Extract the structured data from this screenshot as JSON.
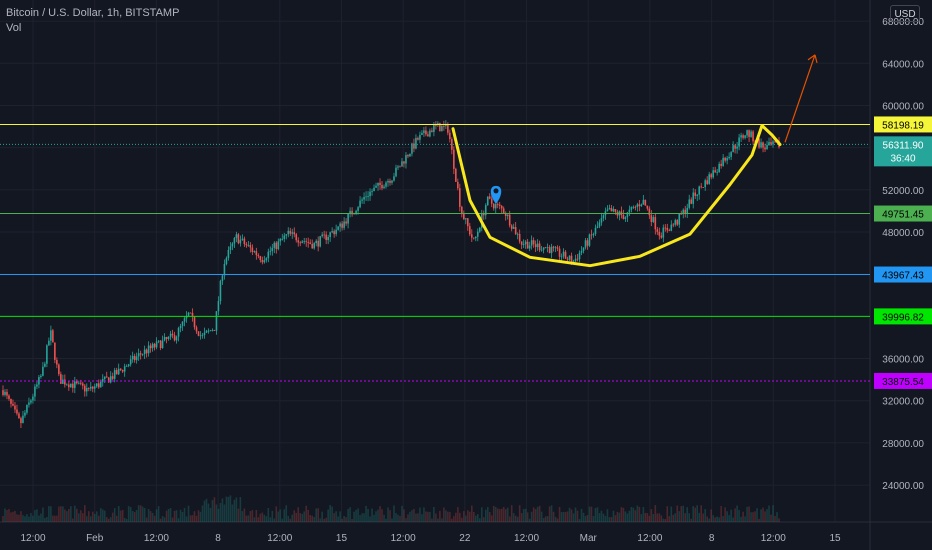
{
  "header": {
    "symbol_line": "Bitcoin / U.S. Dollar, 1h, BITSTAMP",
    "volume_label": "Vol",
    "currency_button": "USD"
  },
  "colors": {
    "background": "#131722",
    "grid": "#1e222d",
    "up_candle": "#26a69a",
    "down_candle": "#ef5350",
    "yellow_line": "#f5f53a",
    "green_line": "#4caf50",
    "bright_green_line": "#00e600",
    "blue_line": "#2196f3",
    "purple_line": "#c000ff",
    "cup_drawing": "#f8e71c",
    "arrow": "#e65100",
    "current_price_tag": "#26a69a"
  },
  "chart_data": {
    "type": "candlestick",
    "title": "Bitcoin / U.S. Dollar, 1h, BITSTAMP",
    "x_ticks": [
      "12:00",
      "Feb",
      "12:00",
      "8",
      "12:00",
      "15",
      "12:00",
      "22",
      "12:00",
      "Mar",
      "12:00",
      "8",
      "12:00",
      "15"
    ],
    "y_ticks": [
      24000,
      28000,
      32000,
      36000,
      40000,
      44000,
      48000,
      52000,
      56000,
      60000,
      64000,
      68000
    ],
    "y_tick_labels": [
      "24000.00",
      "28000.00",
      "32000.00",
      "36000.00",
      "40000.00",
      "44000.00",
      "48000.00",
      "52000.00",
      "56000.00",
      "60000.00",
      "64000.00",
      "68000.00"
    ],
    "ylim": [
      20500,
      70000
    ],
    "horizontal_lines": [
      {
        "value": 58198.19,
        "label": "58198.19",
        "color": "#f5f53a",
        "style": "solid"
      },
      {
        "value": 49751.45,
        "label": "49751.45",
        "color": "#4caf50",
        "style": "solid"
      },
      {
        "value": 43967.43,
        "label": "43967.43",
        "color": "#2196f3",
        "style": "solid"
      },
      {
        "value": 39996.82,
        "label": "39996.82",
        "color": "#00e600",
        "style": "solid"
      },
      {
        "value": 33875.54,
        "label": "33875.54",
        "color": "#c000ff",
        "style": "dotted"
      }
    ],
    "current_price": {
      "value": 56311.9,
      "label": "56311.90",
      "countdown": "36:40"
    },
    "price_path_anchors": [
      [
        0,
        33000
      ],
      [
        0.02,
        29800
      ],
      [
        0.045,
        34500
      ],
      [
        0.055,
        38500
      ],
      [
        0.065,
        34000
      ],
      [
        0.1,
        33000
      ],
      [
        0.13,
        34500
      ],
      [
        0.16,
        36500
      ],
      [
        0.2,
        38200
      ],
      [
        0.215,
        40200
      ],
      [
        0.23,
        38000
      ],
      [
        0.245,
        39000
      ],
      [
        0.255,
        45000
      ],
      [
        0.27,
        47500
      ],
      [
        0.3,
        45500
      ],
      [
        0.33,
        47800
      ],
      [
        0.36,
        46800
      ],
      [
        0.39,
        48500
      ],
      [
        0.42,
        51500
      ],
      [
        0.45,
        53200
      ],
      [
        0.48,
        56800
      ],
      [
        0.5,
        58000
      ],
      [
        0.515,
        57800
      ],
      [
        0.53,
        50000
      ],
      [
        0.545,
        47000
      ],
      [
        0.56,
        51000
      ],
      [
        0.58,
        50000
      ],
      [
        0.6,
        47000
      ],
      [
        0.63,
        46500
      ],
      [
        0.66,
        45200
      ],
      [
        0.68,
        47500
      ],
      [
        0.7,
        50000
      ],
      [
        0.72,
        49500
      ],
      [
        0.74,
        51000
      ],
      [
        0.76,
        47800
      ],
      [
        0.78,
        49000
      ],
      [
        0.8,
        51500
      ],
      [
        0.82,
        53500
      ],
      [
        0.84,
        55500
      ],
      [
        0.86,
        57500
      ],
      [
        0.88,
        56000
      ],
      [
        0.9,
        56312
      ]
    ],
    "annotations": [
      {
        "kind": "cup-curve",
        "color": "#f8e71c"
      },
      {
        "kind": "arrow-up",
        "color": "#e65100"
      },
      {
        "kind": "location-pin",
        "color": "#2196f3"
      }
    ]
  }
}
